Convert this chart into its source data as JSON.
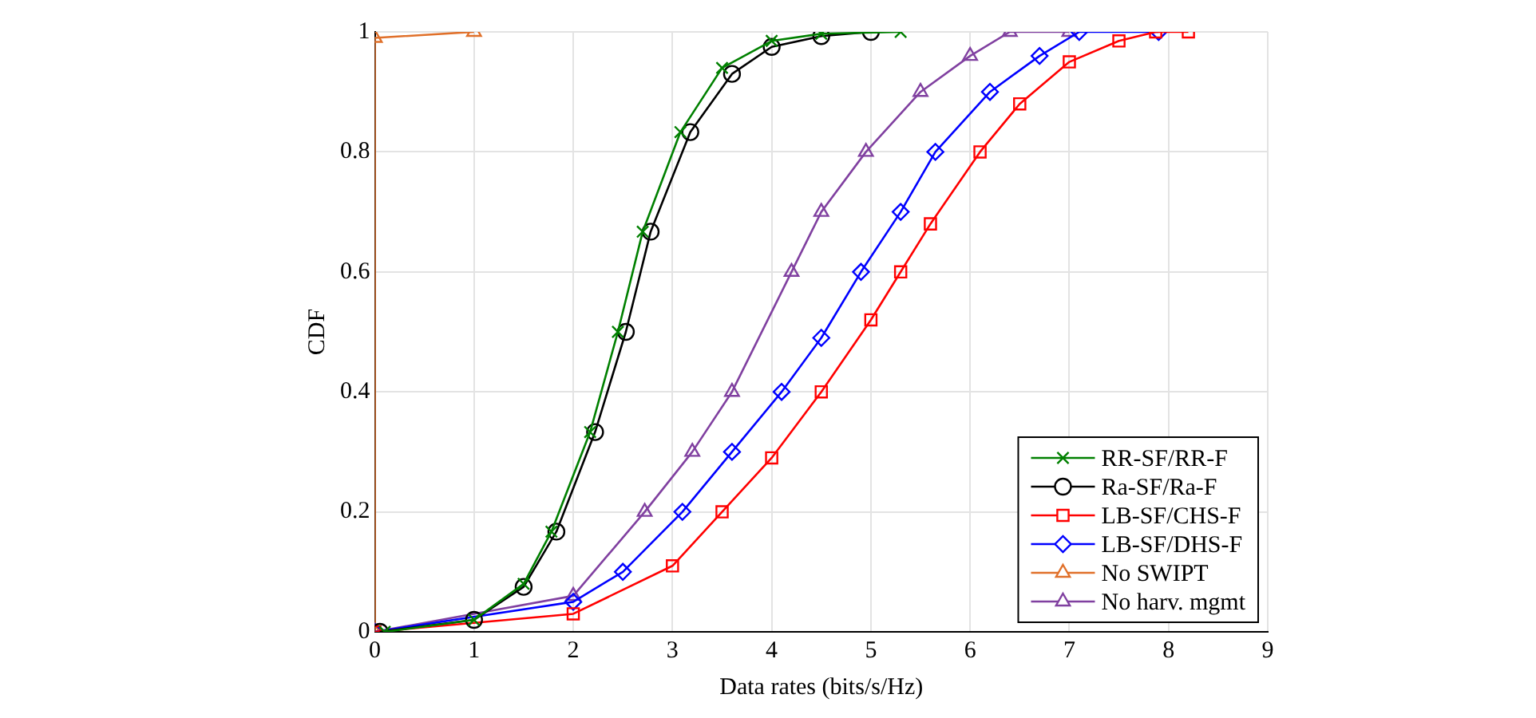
{
  "chart_data": {
    "type": "line",
    "xlabel": "Data rates (bits/s/Hz)",
    "ylabel": "CDF",
    "xlim": [
      0,
      9
    ],
    "ylim": [
      0,
      1
    ],
    "xticks": [
      0,
      1,
      2,
      3,
      4,
      5,
      6,
      7,
      8,
      9
    ],
    "yticks": [
      0,
      0.2,
      0.4,
      0.6,
      0.8,
      1
    ],
    "grid": true,
    "legend": "bottom right",
    "line_style": "solid",
    "series": [
      {
        "name": "RR-SF/RR-F",
        "color": "#008000",
        "marker": "cross",
        "x": [
          0.1,
          1,
          1.5,
          1.78,
          2.17,
          2.45,
          2.7,
          3.08,
          3.5,
          4,
          4.5,
          5.3
        ],
        "values": [
          0,
          0.02,
          0.08,
          0.167,
          0.333,
          0.5,
          0.667,
          0.833,
          0.94,
          0.985,
          0.997,
          1
        ]
      },
      {
        "name": "Ra-SF/Ra-F",
        "color": "#000000",
        "marker": "circle",
        "x": [
          0.05,
          1,
          1.5,
          1.83,
          2.22,
          2.53,
          2.78,
          3.18,
          3.6,
          4,
          4.5,
          5
        ],
        "values": [
          0,
          0.02,
          0.075,
          0.167,
          0.333,
          0.5,
          0.667,
          0.833,
          0.93,
          0.975,
          0.993,
          1
        ]
      },
      {
        "name": "LB-SF/CHS-F",
        "color": "#ff0000",
        "marker": "square",
        "x": [
          0,
          2,
          3,
          3.5,
          4,
          4.5,
          5,
          5.3,
          5.6,
          6.1,
          6.5,
          7,
          7.5,
          7.87,
          8.2
        ],
        "values": [
          0,
          0.03,
          0.11,
          0.2,
          0.29,
          0.4,
          0.52,
          0.6,
          0.68,
          0.8,
          0.88,
          0.95,
          0.985,
          1,
          1
        ]
      },
      {
        "name": "LB-SF/DHS-F",
        "color": "#0000ff",
        "marker": "diamond",
        "x": [
          0,
          2,
          2.5,
          3.1,
          3.6,
          4.1,
          4.5,
          4.9,
          5.3,
          5.65,
          6.2,
          6.7,
          7.1,
          7.9
        ],
        "values": [
          0,
          0.05,
          0.1,
          0.2,
          0.3,
          0.4,
          0.49,
          0.6,
          0.7,
          0.8,
          0.9,
          0.96,
          1,
          1
        ]
      },
      {
        "name": "No SWIPT",
        "color": "#e0702a",
        "marker": "triangle",
        "x": [
          0,
          0,
          1
        ],
        "values": [
          0,
          0.99,
          1
        ]
      },
      {
        "name": "No harv. mgmt",
        "color": "#8040a0",
        "marker": "triangle",
        "x": [
          0,
          2,
          2.72,
          3.2,
          3.6,
          4.2,
          4.5,
          4.95,
          5.5,
          6,
          6.4,
          7
        ],
        "values": [
          0,
          0.06,
          0.2,
          0.3,
          0.4,
          0.6,
          0.7,
          0.8,
          0.9,
          0.96,
          1,
          1
        ]
      }
    ]
  }
}
